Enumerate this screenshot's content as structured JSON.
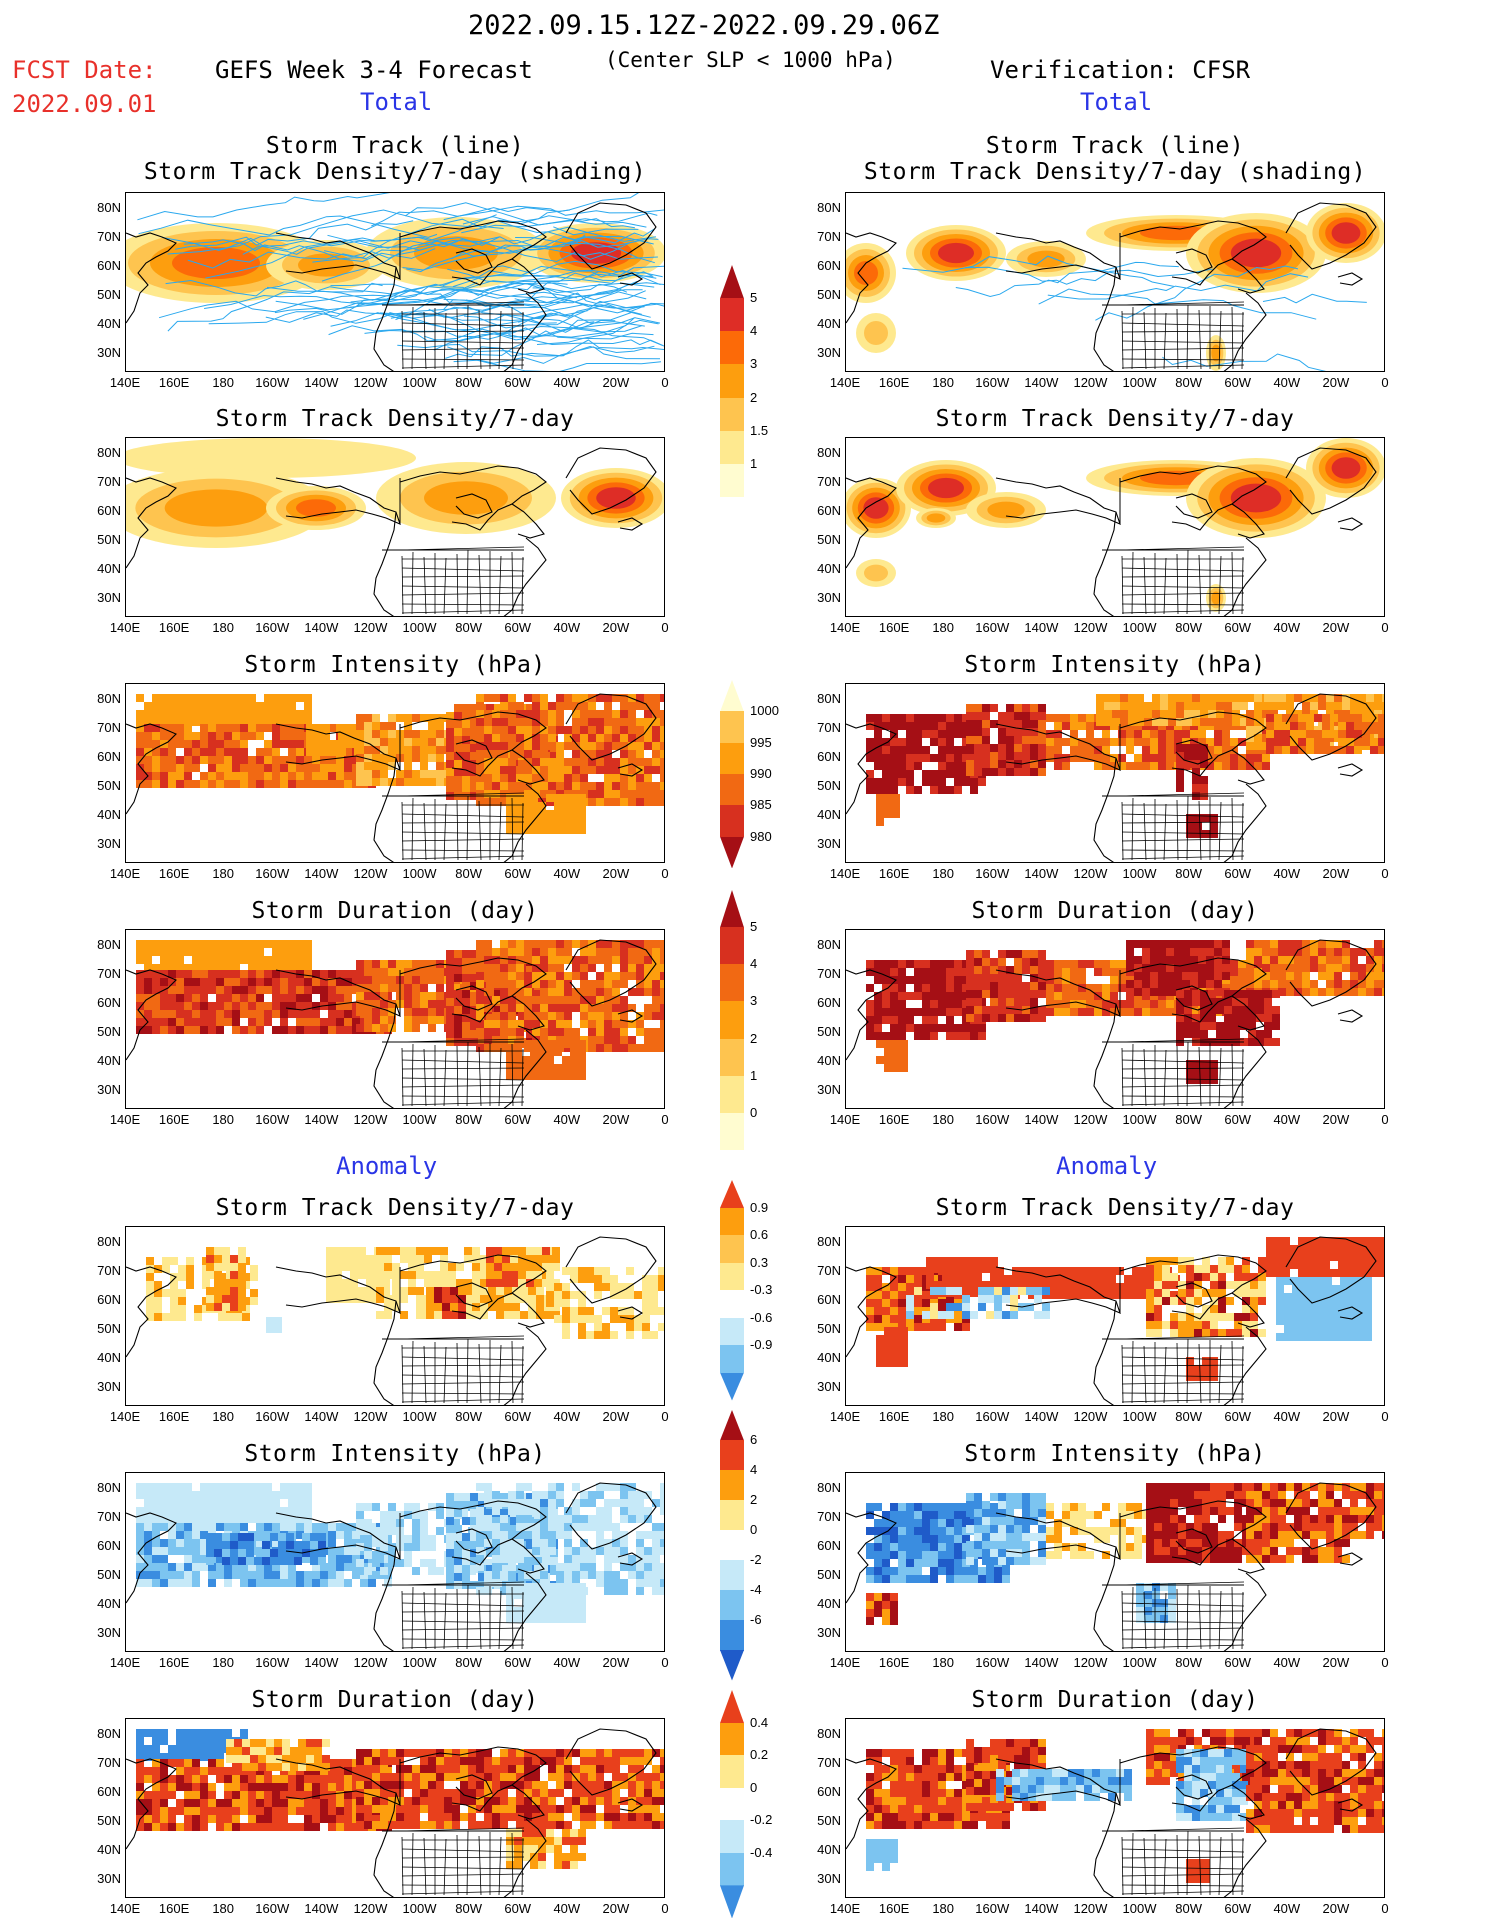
{
  "header": {
    "period": "2022.09.15.12Z-2022.09.29.06Z",
    "fcst_label": "FCST Date:",
    "fcst_date": "2022.09.01",
    "forecast_title": "GEFS Week 3-4 Forecast",
    "criterion": "(Center SLP < 1000 hPa)",
    "verification": "Verification: CFSR",
    "total_label": "Total",
    "anomaly_label": "Anomaly"
  },
  "panels": {
    "track_line_l1": "Storm Track (line)",
    "track_line_l2": "Storm Track Density/7-day (shading)",
    "density": "Storm Track Density/7-day",
    "intensity": "Storm Intensity (hPa)",
    "duration": "Storm Duration (day)"
  },
  "axes": {
    "lat": [
      "80N",
      "70N",
      "60N",
      "50N",
      "40N",
      "30N"
    ],
    "lon": [
      "140E",
      "160E",
      "180",
      "160W",
      "140W",
      "120W",
      "100W",
      "80W",
      "60W",
      "40W",
      "20W",
      "0"
    ]
  },
  "colorbars": {
    "density_total": {
      "labels": [
        "5",
        "4",
        "3",
        "2",
        "1.5",
        "1"
      ],
      "colors": [
        "#a50f15",
        "#de2d26",
        "#fc6a08",
        "#fd9e0e",
        "#fec44f",
        "#fee98f",
        "#fffcd0"
      ]
    },
    "intensity_total": {
      "labels": [
        "1000",
        "995",
        "990",
        "985",
        "980"
      ],
      "colors": [
        "#fffcd0",
        "#fec44f",
        "#fd9e0e",
        "#f16913",
        "#d7301f",
        "#a50f15"
      ]
    },
    "duration_total": {
      "labels": [
        "5",
        "4",
        "3",
        "2",
        "1",
        "0"
      ],
      "colors": [
        "#a50f15",
        "#d7301f",
        "#f16913",
        "#fd9e0e",
        "#fec44f",
        "#fee98f",
        "#fffcd0"
      ]
    },
    "density_anom": {
      "labels": [
        "0.9",
        "0.6",
        "0.3",
        "-0.3",
        "-0.6",
        "-0.9"
      ],
      "colors": [
        "#e8401c",
        "#fd9e0e",
        "#fec44f",
        "#fee98f",
        "#ffffff",
        "#c6e9f8",
        "#7cc4f0",
        "#3a8de0"
      ]
    },
    "intensity_anom": {
      "labels": [
        "6",
        "4",
        "2",
        "0",
        "-2",
        "-4",
        "-6"
      ],
      "colors": [
        "#a50f15",
        "#e8401c",
        "#fd9e0e",
        "#fee98f",
        "#ffffff",
        "#c6e9f8",
        "#7cc4f0",
        "#3a8de0",
        "#1f5bc9"
      ]
    },
    "duration_anom": {
      "labels": [
        "0.4",
        "0.2",
        "0",
        "-0.2",
        "-0.4"
      ],
      "colors": [
        "#e8401c",
        "#fd9e0e",
        "#fee98f",
        "#ffffff",
        "#c6e9f8",
        "#7cc4f0",
        "#3a8de0"
      ]
    }
  },
  "colors": {
    "title_red": "#e8302a",
    "label_blue": "#2a35e6",
    "track_line": "#2aa8ee"
  }
}
